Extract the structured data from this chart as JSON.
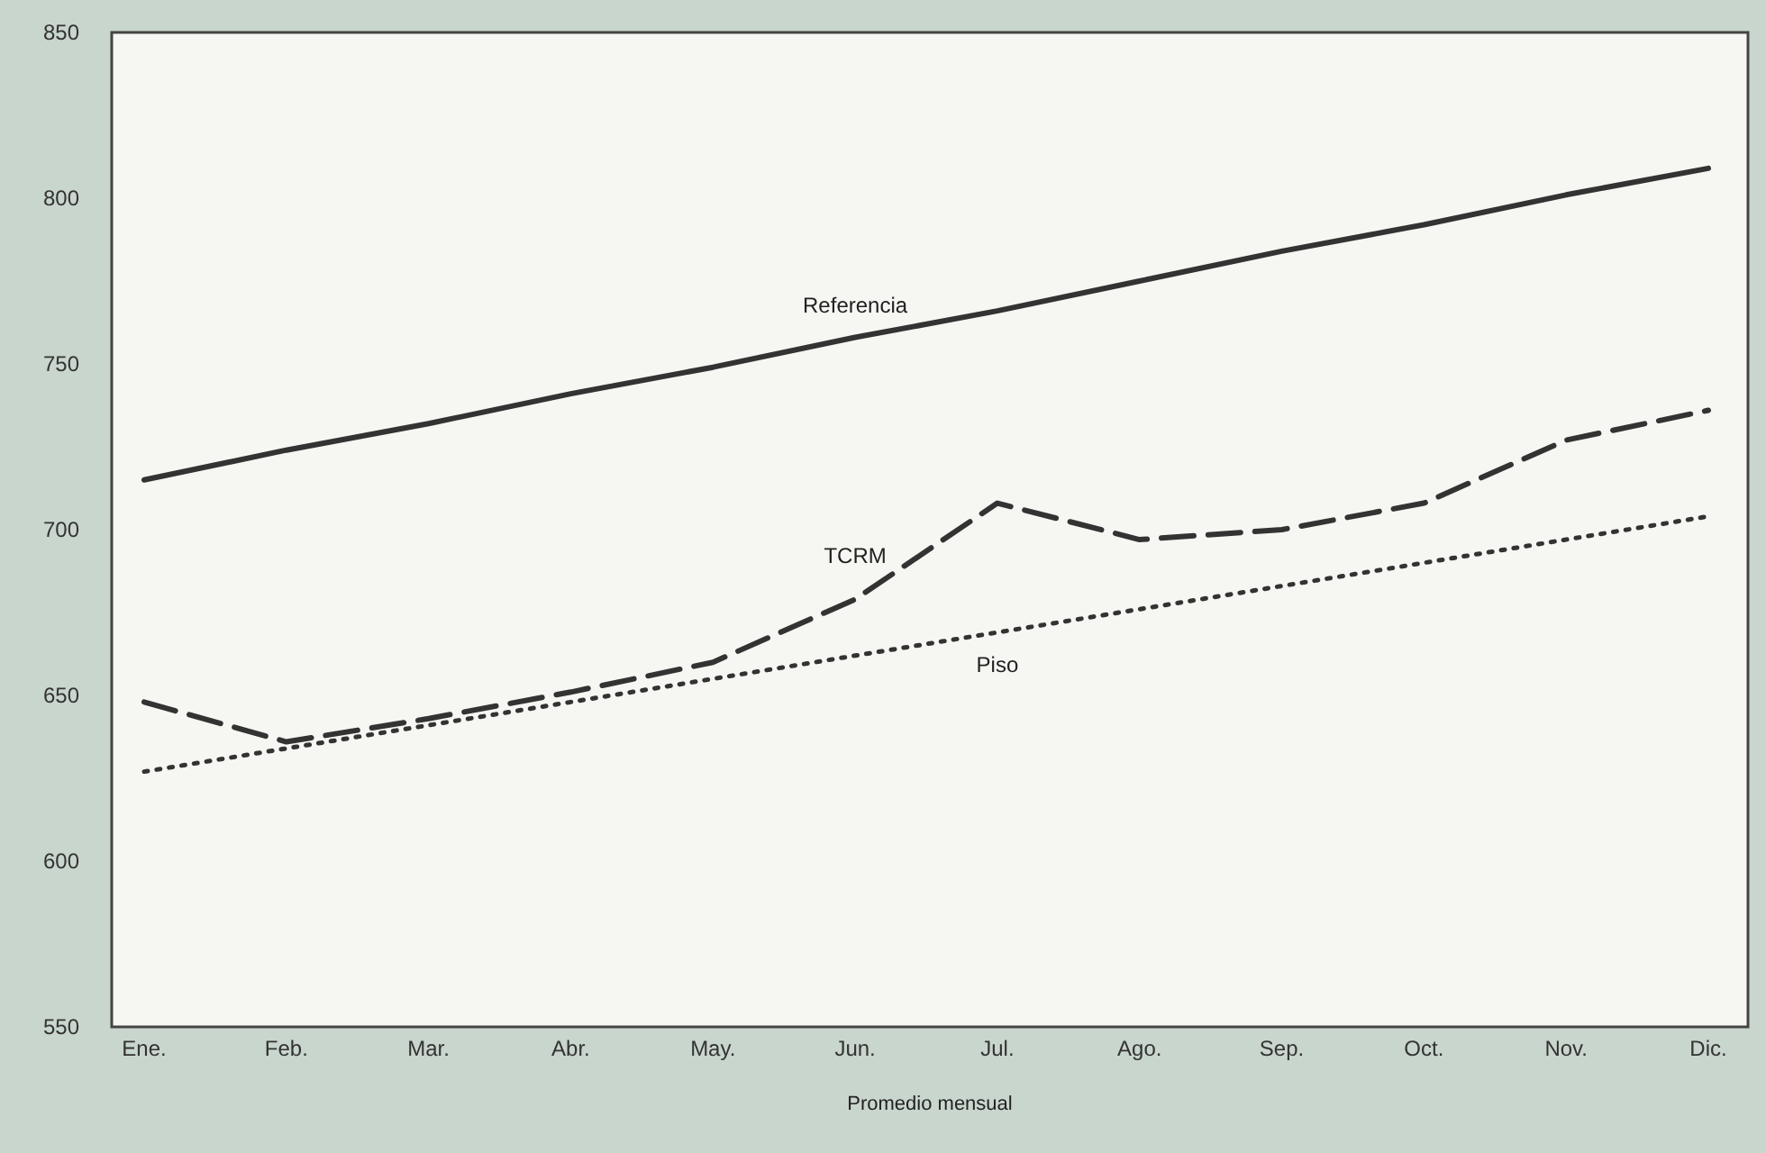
{
  "chart_data": {
    "type": "line",
    "xlabel": "Promedio mensual",
    "categories": [
      "Ene.",
      "Feb.",
      "Mar.",
      "Abr.",
      "May.",
      "Jun.",
      "Jul.",
      "Ago.",
      "Sep.",
      "Oct.",
      "Nov.",
      "Dic."
    ],
    "series": [
      {
        "name": "Referencia",
        "color": "#333333",
        "line_style": "solid",
        "values": [
          715,
          724,
          732,
          741,
          749,
          758,
          766,
          775,
          784,
          792,
          801,
          809
        ]
      },
      {
        "name": "TCRM",
        "color": "#333333",
        "line_style": "dashed",
        "values": [
          648,
          636,
          643,
          651,
          660,
          679,
          708,
          697,
          700,
          708,
          727,
          736
        ]
      },
      {
        "name": "Piso",
        "color": "#333333",
        "line_style": "dotted",
        "values": [
          627,
          634,
          641,
          648,
          655,
          662,
          669,
          676,
          683,
          690,
          697,
          704
        ]
      }
    ],
    "ylim": [
      550,
      850
    ],
    "yticks": [
      550,
      600,
      650,
      700,
      750,
      800,
      850
    ],
    "grid": false,
    "legend": false,
    "marker": "none"
  }
}
